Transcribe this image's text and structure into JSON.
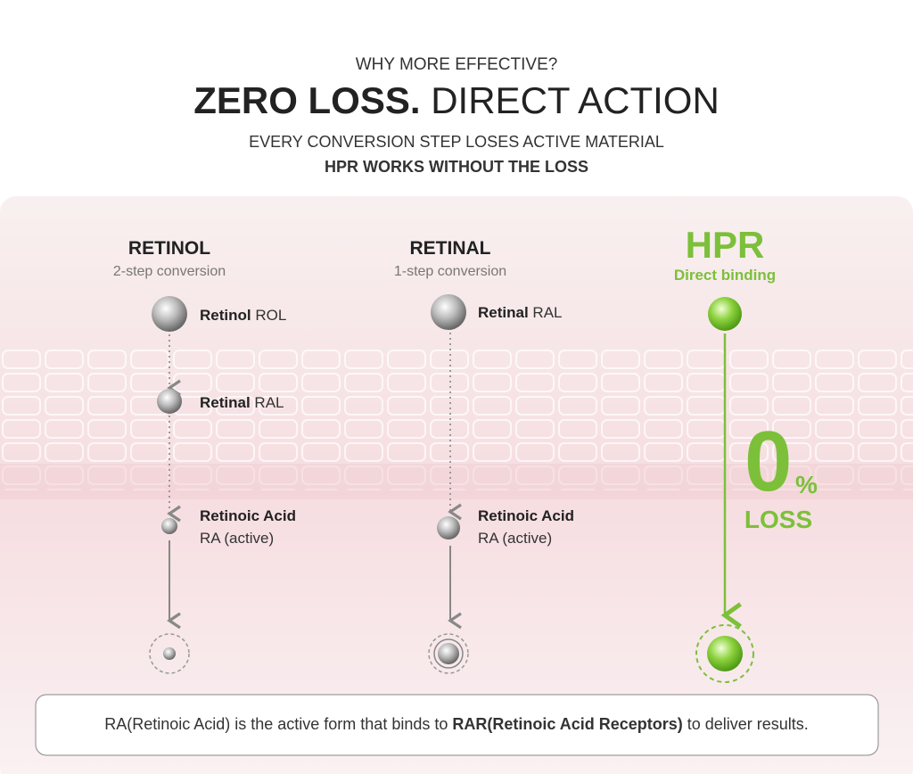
{
  "header": {
    "eyebrow": "WHY MORE EFFECTIVE?",
    "title_bold": "ZERO LOSS.",
    "title_rest": "DIRECT ACTION",
    "line1": "EVERY CONVERSION STEP LOSES ACTIVE MATERIAL",
    "line2": "HPR WORKS WITHOUT THE LOSS"
  },
  "columns": [
    {
      "title": "RETINOL",
      "subtitle": "2-step conversion",
      "steps": [
        {
          "name": "Retinol",
          "code": "ROL"
        },
        {
          "name": "Retinal",
          "code": "RAL"
        },
        {
          "name": "Retinoic Acid",
          "code": "RA (active)"
        }
      ]
    },
    {
      "title": "RETINAL",
      "subtitle": "1-step conversion",
      "steps": [
        {
          "name": "Retinal",
          "code": "RAL"
        },
        {
          "name": "Retinoic Acid",
          "code": "RA (active)"
        }
      ]
    },
    {
      "title": "HPR",
      "subtitle": "Direct binding"
    }
  ],
  "hpr_loss": {
    "number": "0",
    "unit": "%",
    "label": "LOSS"
  },
  "footer": {
    "parts": [
      "RA(Retinoic Acid) is the active form that binds to ",
      "RAR(Retinoic Acid Receptors)",
      " to deliver results."
    ]
  }
}
